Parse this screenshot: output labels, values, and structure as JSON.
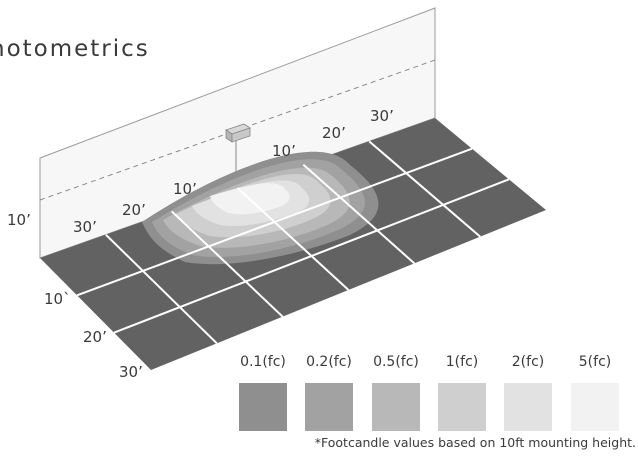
{
  "title": "hotometrics",
  "diagram": {
    "wall_labels": {
      "left_height": "10’"
    },
    "top_labels": [
      "30’",
      "20’",
      "10’",
      "10’",
      "20’",
      "30’"
    ],
    "side_labels": [
      "10`",
      "20’",
      "30’"
    ]
  },
  "legend": {
    "items": [
      {
        "label": "0.1(fc)",
        "color": "#8f8f8f"
      },
      {
        "label": "0.2(fc)",
        "color": "#a2a2a2"
      },
      {
        "label": "0.5(fc)",
        "color": "#b8b8b8"
      },
      {
        "label": "1(fc)",
        "color": "#cfcfcf"
      },
      {
        "label": "2(fc)",
        "color": "#e2e2e2"
      },
      {
        "label": "5(fc)",
        "color": "#f2f2f2"
      }
    ]
  },
  "footnote": "*Footcandle values based on 10ft mounting height.",
  "colors": {
    "floor": "#626262",
    "grid_line": "#ffffff",
    "wall_stroke": "#9a9a9a",
    "text": "#3a3a3a"
  }
}
